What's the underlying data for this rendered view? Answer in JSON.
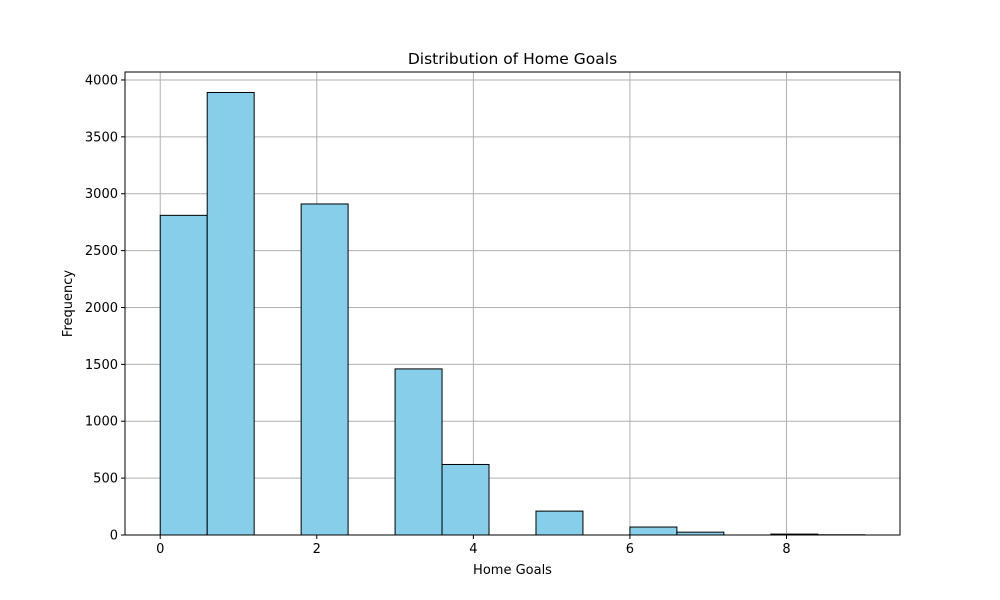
{
  "chart_data": {
    "type": "bar",
    "title": "Distribution of Home Goals",
    "xlabel": "Home Goals",
    "ylabel": "Frequency",
    "xlim": [
      -0.45,
      9.45
    ],
    "ylim": [
      0,
      4070
    ],
    "xticks": [
      0,
      2,
      4,
      6,
      8
    ],
    "xtick_labels": [
      "0",
      "2",
      "4",
      "6",
      "8"
    ],
    "yticks": [
      0,
      500,
      1000,
      1500,
      2000,
      2500,
      3000,
      3500,
      4000
    ],
    "ytick_labels": [
      "0",
      "500",
      "1000",
      "1500",
      "2000",
      "2500",
      "3000",
      "3500",
      "4000"
    ],
    "grid": true,
    "bar_color": "#87ceeb",
    "edge_color": "#000000",
    "grid_color": "#b0b0b0",
    "bins": [
      {
        "x0": 0.0,
        "x1": 0.6,
        "value": 2810
      },
      {
        "x0": 0.6,
        "x1": 1.2,
        "value": 3890
      },
      {
        "x0": 1.2,
        "x1": 1.8,
        "value": 0
      },
      {
        "x0": 1.8,
        "x1": 2.4,
        "value": 2910
      },
      {
        "x0": 2.4,
        "x1": 3.0,
        "value": 0
      },
      {
        "x0": 3.0,
        "x1": 3.6,
        "value": 1460
      },
      {
        "x0": 3.6,
        "x1": 4.2,
        "value": 620
      },
      {
        "x0": 4.2,
        "x1": 4.8,
        "value": 0
      },
      {
        "x0": 4.8,
        "x1": 5.4,
        "value": 210
      },
      {
        "x0": 5.4,
        "x1": 6.0,
        "value": 0
      },
      {
        "x0": 6.0,
        "x1": 6.6,
        "value": 70
      },
      {
        "x0": 6.6,
        "x1": 7.2,
        "value": 25
      },
      {
        "x0": 7.2,
        "x1": 7.8,
        "value": 0
      },
      {
        "x0": 7.8,
        "x1": 8.4,
        "value": 8
      },
      {
        "x0": 8.4,
        "x1": 9.0,
        "value": 2
      }
    ]
  }
}
